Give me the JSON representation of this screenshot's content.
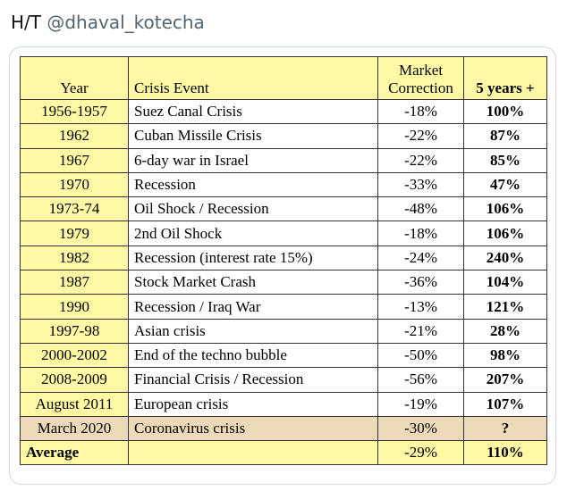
{
  "caption": {
    "prefix": "H/T",
    "handle": "@dhaval_kotecha"
  },
  "table": {
    "headers": {
      "year": "Year",
      "event": "Crisis Event",
      "correction_line1": "Market",
      "correction_line2": "Correction",
      "five_years": "5 years +"
    },
    "rows": [
      {
        "year": "1956-1957",
        "event": "Suez Canal Crisis",
        "correction": "-18%",
        "five_years": "100%"
      },
      {
        "year": "1962",
        "event": "Cuban Missile Crisis",
        "correction": "-22%",
        "five_years": "87%"
      },
      {
        "year": "1967",
        "event": "6-day war in Israel",
        "correction": "-22%",
        "five_years": "85%"
      },
      {
        "year": "1970",
        "event": "Recession",
        "correction": "-33%",
        "five_years": "47%"
      },
      {
        "year": "1973-74",
        "event": "Oil Shock / Recession",
        "correction": "-48%",
        "five_years": "106%"
      },
      {
        "year": "1979",
        "event": "2nd Oil Shock",
        "correction": "-18%",
        "five_years": "106%"
      },
      {
        "year": "1982",
        "event": "Recession (interest rate 15%)",
        "correction": "-24%",
        "five_years": "240%"
      },
      {
        "year": "1987",
        "event": "Stock Market Crash",
        "correction": "-36%",
        "five_years": "104%"
      },
      {
        "year": "1990",
        "event": "Recession / Iraq War",
        "correction": "-13%",
        "five_years": "121%"
      },
      {
        "year": "1997-98",
        "event": "Asian crisis",
        "correction": "-21%",
        "five_years": "28%"
      },
      {
        "year": "2000-2002",
        "event": "End of the techno bubble",
        "correction": "-50%",
        "five_years": "98%"
      },
      {
        "year": "2008-2009",
        "event": "Financial Crisis / Recession",
        "correction": "-56%",
        "five_years": "207%"
      },
      {
        "year": "August 2011",
        "event": "European crisis",
        "correction": "-19%",
        "five_years": "107%"
      },
      {
        "year": "March 2020",
        "event": "Coronavirus crisis",
        "correction": "-30%",
        "five_years": "?"
      }
    ],
    "average": {
      "label": "Average",
      "correction": "-29%",
      "five_years": "110%"
    },
    "colors": {
      "year_column": "#fff9a6",
      "highlight_row": "#ecd9b8",
      "border": "#333333"
    }
  }
}
